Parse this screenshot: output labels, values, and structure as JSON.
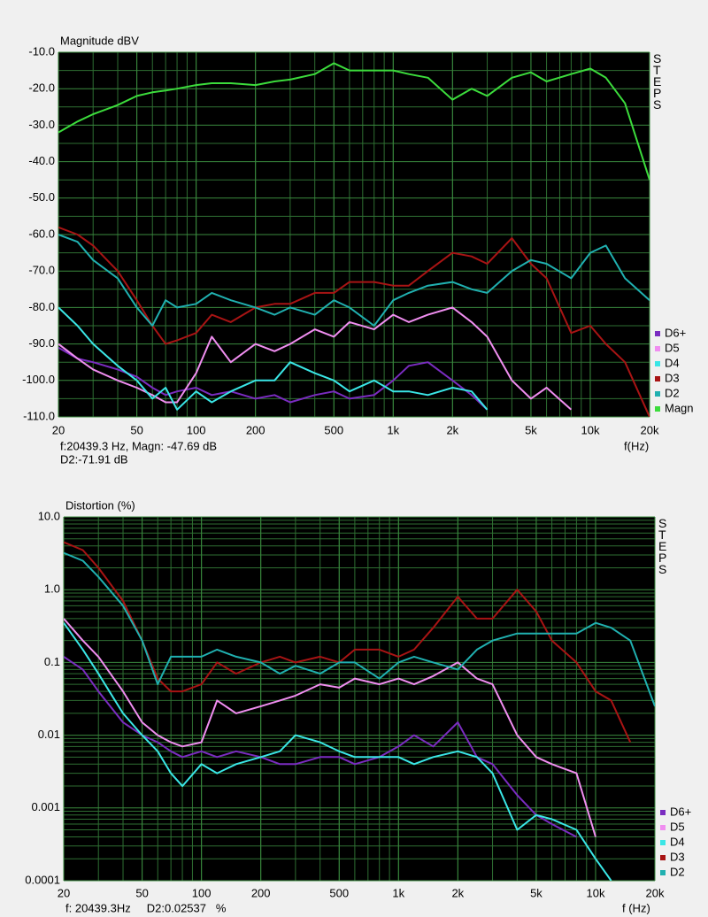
{
  "chart_data": [
    {
      "type": "line",
      "title": "Magnitude dBV",
      "x_label": "f(Hz)",
      "side_label": "STEPS",
      "status": [
        "f:20439.3 Hz, Magn: -47.69 dB",
        "D2:-71.91 dB"
      ],
      "xscale": "log",
      "yscale": "linear",
      "grid": true,
      "legend": "lower right",
      "xlim": [
        20,
        20000
      ],
      "ylim": [
        -110,
        -10
      ],
      "xticks": [
        20,
        50,
        100,
        200,
        500,
        {
          "value": 1000,
          "label": "1k"
        },
        {
          "value": 2000,
          "label": "2k"
        },
        {
          "value": 5000,
          "label": "5k"
        },
        {
          "value": 10000,
          "label": "10k"
        },
        {
          "value": 20000,
          "label": "20k"
        }
      ],
      "yticks": [
        {
          "value": -10,
          "label": "-10.0"
        },
        {
          "value": -20,
          "label": "-20.0"
        },
        {
          "value": -30,
          "label": "-30.0"
        },
        {
          "value": -40,
          "label": "-40.0"
        },
        {
          "value": -50,
          "label": "-50.0"
        },
        {
          "value": -60,
          "label": "-60.0"
        },
        {
          "value": -70,
          "label": "-70.0"
        },
        {
          "value": -80,
          "label": "-80.0"
        },
        {
          "value": -90,
          "label": "-90.0"
        },
        {
          "value": -100,
          "label": "-100.0"
        },
        {
          "value": -110,
          "label": "-110.0"
        }
      ],
      "x": [
        20,
        25,
        30,
        40,
        50,
        60,
        70,
        80,
        100,
        120,
        150,
        200,
        250,
        300,
        400,
        500,
        600,
        800,
        1000,
        1200,
        1500,
        2000,
        2500,
        3000,
        4000,
        5000,
        6000,
        8000,
        10000,
        12000,
        15000,
        20000
      ],
      "series": [
        {
          "name": "D6+",
          "color": "#7a2cc0",
          "values": [
            -91,
            -94,
            -95,
            -97,
            -99,
            -102,
            -104,
            -103,
            -102,
            -104,
            -103,
            -105,
            -104,
            -106,
            -104,
            -103,
            -105,
            -104,
            -100,
            -96,
            -95,
            -100,
            -104,
            -108,
            null,
            null,
            null,
            null,
            null,
            null,
            null,
            null
          ]
        },
        {
          "name": "D5",
          "color": "#f08ef0",
          "values": [
            -90,
            -94,
            -97,
            -100,
            -102,
            -104,
            -106,
            -106,
            -98,
            -88,
            -95,
            -90,
            -92,
            -90,
            -86,
            -88,
            -84,
            -86,
            -82,
            -84,
            -82,
            -80,
            -84,
            -88,
            -100,
            -105,
            -102,
            -108,
            null,
            null,
            null,
            null
          ]
        },
        {
          "name": "D4",
          "color": "#3ae6e6",
          "values": [
            -80,
            -85,
            -90,
            -96,
            -100,
            -105,
            -102,
            -108,
            -103,
            -106,
            -103,
            -100,
            -100,
            -95,
            -98,
            -100,
            -103,
            -100,
            -103,
            -103,
            -104,
            -102,
            -103,
            -108,
            null,
            null,
            null,
            null,
            null,
            null,
            null,
            null
          ]
        },
        {
          "name": "D3",
          "color": "#a81414",
          "values": [
            -58,
            -60,
            -63,
            -70,
            -78,
            -85,
            -90,
            -89,
            -87,
            -82,
            -84,
            -80,
            -79,
            -79,
            -76,
            -76,
            -73,
            -73,
            -74,
            -74,
            -70,
            -65,
            -66,
            -68,
            -61,
            -68,
            -72,
            -87,
            -85,
            -90,
            -95,
            -110
          ]
        },
        {
          "name": "D2",
          "color": "#20b0b0",
          "values": [
            -60,
            -62,
            -67,
            -72,
            -80,
            -85,
            -78,
            -80,
            -79,
            -76,
            -78,
            -80,
            -82,
            -80,
            -82,
            -78,
            -80,
            -85,
            -78,
            -76,
            -74,
            -73,
            -75,
            -76,
            -70,
            -67,
            -68,
            -72,
            -65,
            -63,
            -72,
            -78
          ]
        },
        {
          "name": "Magn",
          "color": "#3cdc3c",
          "values": [
            -32,
            -29,
            -27,
            -24.5,
            -22,
            -21,
            -20.5,
            -20,
            -19,
            -18.5,
            -18.5,
            -19,
            -18,
            -17.5,
            -16,
            -13,
            -15,
            -15,
            -15,
            -16,
            -17,
            -23,
            -20,
            -22,
            -17,
            -15.5,
            -18,
            -16,
            -14.5,
            -17,
            -24,
            -45
          ]
        }
      ]
    },
    {
      "type": "line",
      "title": "Distortion (%)",
      "x_label": "f (Hz)",
      "side_label": "STEPS",
      "status": [
        "f: 20439.3Hz     D2:0.02537   %"
      ],
      "xscale": "log",
      "yscale": "log",
      "grid": true,
      "legend": "lower right",
      "xlim": [
        20,
        20000
      ],
      "ylim": [
        0.0001,
        10
      ],
      "xticks": [
        20,
        50,
        100,
        200,
        500,
        {
          "value": 1000,
          "label": "1k"
        },
        {
          "value": 2000,
          "label": "2k"
        },
        {
          "value": 5000,
          "label": "5k"
        },
        {
          "value": 10000,
          "label": "10k"
        },
        {
          "value": 20000,
          "label": "20k"
        }
      ],
      "yticks": [
        {
          "value": 10,
          "label": "10.0"
        },
        {
          "value": 1,
          "label": "1.0"
        },
        0.1,
        0.01,
        0.001,
        0.0001
      ],
      "x": [
        20,
        25,
        30,
        40,
        50,
        60,
        70,
        80,
        100,
        120,
        150,
        200,
        250,
        300,
        400,
        500,
        600,
        800,
        1000,
        1200,
        1500,
        2000,
        2500,
        3000,
        4000,
        5000,
        6000,
        8000,
        10000,
        12000,
        15000,
        20000
      ],
      "series": [
        {
          "name": "D6+",
          "color": "#7a2cc0",
          "values": [
            0.12,
            0.08,
            0.04,
            0.015,
            0.01,
            0.008,
            0.006,
            0.005,
            0.006,
            0.005,
            0.006,
            0.005,
            0.004,
            0.004,
            0.005,
            0.005,
            0.004,
            0.005,
            0.007,
            0.01,
            0.007,
            0.015,
            0.005,
            0.004,
            0.0015,
            0.0008,
            0.0006,
            0.0004,
            null,
            null,
            null,
            null
          ]
        },
        {
          "name": "D5",
          "color": "#f08ef0",
          "values": [
            0.4,
            0.2,
            0.12,
            0.04,
            0.015,
            0.01,
            0.008,
            0.007,
            0.008,
            0.03,
            0.02,
            0.025,
            0.03,
            0.035,
            0.05,
            0.045,
            0.06,
            0.05,
            0.06,
            0.05,
            0.065,
            0.1,
            0.06,
            0.05,
            0.01,
            0.005,
            0.004,
            0.003,
            0.0004,
            null,
            null,
            null
          ]
        },
        {
          "name": "D4",
          "color": "#3ae6e6",
          "values": [
            0.35,
            0.15,
            0.07,
            0.02,
            0.01,
            0.006,
            0.003,
            0.002,
            0.004,
            0.003,
            0.004,
            0.005,
            0.006,
            0.01,
            0.008,
            0.006,
            0.005,
            0.005,
            0.005,
            0.004,
            0.005,
            0.006,
            0.005,
            0.003,
            0.0005,
            0.0008,
            0.0007,
            0.0005,
            0.0002,
            0.0001,
            null,
            null
          ]
        },
        {
          "name": "D3",
          "color": "#a81414",
          "values": [
            4.5,
            3.5,
            2,
            0.7,
            0.2,
            0.06,
            0.04,
            0.04,
            0.05,
            0.1,
            0.07,
            0.1,
            0.12,
            0.1,
            0.12,
            0.1,
            0.15,
            0.15,
            0.12,
            0.15,
            0.3,
            0.8,
            0.4,
            0.4,
            1.0,
            0.5,
            0.2,
            0.1,
            0.04,
            0.03,
            0.008,
            null
          ]
        },
        {
          "name": "D2",
          "color": "#20b0b0",
          "values": [
            3.2,
            2.5,
            1.5,
            0.6,
            0.2,
            0.05,
            0.12,
            0.12,
            0.12,
            0.15,
            0.12,
            0.1,
            0.07,
            0.09,
            0.07,
            0.1,
            0.1,
            0.06,
            0.1,
            0.12,
            0.1,
            0.08,
            0.15,
            0.2,
            0.25,
            0.25,
            0.25,
            0.25,
            0.35,
            0.3,
            0.2,
            0.025
          ]
        }
      ]
    }
  ]
}
